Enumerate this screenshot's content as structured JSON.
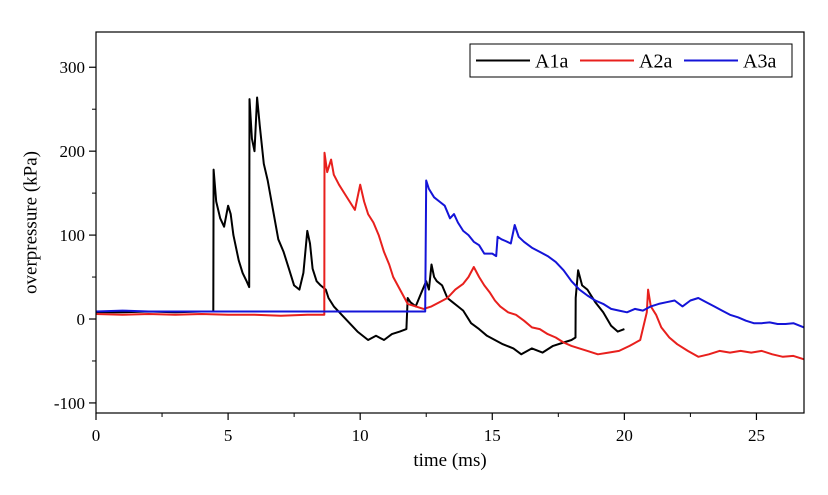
{
  "chart_data": {
    "type": "line",
    "title": "",
    "xlabel": "time (ms)",
    "ylabel": "overpressure (kPa)",
    "xlim": [
      0,
      26.8
    ],
    "ylim": [
      -112,
      342
    ],
    "x_ticks": [
      0,
      5,
      10,
      15,
      20,
      25
    ],
    "x_tick_labels": [
      "0",
      "5",
      "10",
      "15",
      "20",
      "25"
    ],
    "y_ticks": [
      -100,
      0,
      100,
      200,
      300
    ],
    "y_tick_labels": [
      "-100",
      "0",
      "100",
      "200",
      "300"
    ],
    "grid": false,
    "legend_position": "top-right",
    "series": [
      {
        "name": "A1a",
        "color": "#000000",
        "points": [
          [
            0,
            8
          ],
          [
            1.0,
            8
          ],
          [
            2.0,
            9
          ],
          [
            3.0,
            8
          ],
          [
            4.0,
            9
          ],
          [
            4.44,
            9
          ],
          [
            4.45,
            178
          ],
          [
            4.55,
            140
          ],
          [
            4.7,
            120
          ],
          [
            4.85,
            110
          ],
          [
            5.0,
            135
          ],
          [
            5.1,
            125
          ],
          [
            5.2,
            100
          ],
          [
            5.4,
            70
          ],
          [
            5.55,
            55
          ],
          [
            5.7,
            45
          ],
          [
            5.8,
            38
          ],
          [
            5.81,
            262
          ],
          [
            5.9,
            215
          ],
          [
            6.0,
            200
          ],
          [
            6.1,
            264
          ],
          [
            6.2,
            230
          ],
          [
            6.35,
            185
          ],
          [
            6.5,
            165
          ],
          [
            6.7,
            130
          ],
          [
            6.9,
            95
          ],
          [
            7.1,
            80
          ],
          [
            7.3,
            60
          ],
          [
            7.5,
            40
          ],
          [
            7.7,
            35
          ],
          [
            7.85,
            55
          ],
          [
            8.0,
            105
          ],
          [
            8.1,
            90
          ],
          [
            8.2,
            60
          ],
          [
            8.35,
            45
          ],
          [
            8.5,
            40
          ],
          [
            8.7,
            35
          ],
          [
            8.8,
            25
          ],
          [
            9.0,
            15
          ],
          [
            9.3,
            5
          ],
          [
            9.6,
            -5
          ],
          [
            9.9,
            -15
          ],
          [
            10.3,
            -25
          ],
          [
            10.6,
            -20
          ],
          [
            10.9,
            -25
          ],
          [
            11.2,
            -18
          ],
          [
            11.5,
            -15
          ],
          [
            11.75,
            -12
          ],
          [
            11.8,
            25
          ],
          [
            11.9,
            20
          ],
          [
            12.1,
            15
          ],
          [
            12.3,
            30
          ],
          [
            12.5,
            45
          ],
          [
            12.6,
            35
          ],
          [
            12.7,
            65
          ],
          [
            12.8,
            50
          ],
          [
            12.9,
            45
          ],
          [
            13.1,
            40
          ],
          [
            13.3,
            25
          ],
          [
            13.5,
            20
          ],
          [
            13.7,
            15
          ],
          [
            13.9,
            10
          ],
          [
            14.2,
            -5
          ],
          [
            14.5,
            -12
          ],
          [
            14.8,
            -20
          ],
          [
            15.1,
            -25
          ],
          [
            15.4,
            -30
          ],
          [
            15.8,
            -35
          ],
          [
            16.1,
            -42
          ],
          [
            16.5,
            -35
          ],
          [
            16.9,
            -40
          ],
          [
            17.3,
            -32
          ],
          [
            17.7,
            -28
          ],
          [
            18.0,
            -25
          ],
          [
            18.15,
            -22
          ],
          [
            18.16,
            25
          ],
          [
            18.25,
            58
          ],
          [
            18.4,
            40
          ],
          [
            18.6,
            35
          ],
          [
            18.9,
            20
          ],
          [
            19.2,
            8
          ],
          [
            19.5,
            -8
          ],
          [
            19.75,
            -15
          ],
          [
            20.0,
            -12
          ]
        ]
      },
      {
        "name": "A2a",
        "color": "#e8201d",
        "points": [
          [
            0,
            6
          ],
          [
            1.0,
            5
          ],
          [
            2.0,
            6
          ],
          [
            3.0,
            5
          ],
          [
            4.0,
            6
          ],
          [
            5.0,
            5
          ],
          [
            6.0,
            5
          ],
          [
            7.0,
            4
          ],
          [
            8.0,
            5
          ],
          [
            8.64,
            5
          ],
          [
            8.65,
            198
          ],
          [
            8.75,
            175
          ],
          [
            8.9,
            190
          ],
          [
            9.0,
            172
          ],
          [
            9.2,
            160
          ],
          [
            9.4,
            150
          ],
          [
            9.6,
            140
          ],
          [
            9.8,
            130
          ],
          [
            10.0,
            160
          ],
          [
            10.15,
            140
          ],
          [
            10.3,
            125
          ],
          [
            10.5,
            115
          ],
          [
            10.7,
            100
          ],
          [
            10.9,
            80
          ],
          [
            11.1,
            65
          ],
          [
            11.25,
            50
          ],
          [
            11.8,
            18
          ],
          [
            12.1,
            15
          ],
          [
            12.4,
            12
          ],
          [
            12.7,
            15
          ],
          [
            13.0,
            20
          ],
          [
            13.3,
            25
          ],
          [
            13.6,
            35
          ],
          [
            13.9,
            42
          ],
          [
            14.1,
            50
          ],
          [
            14.3,
            62
          ],
          [
            14.5,
            50
          ],
          [
            14.7,
            40
          ],
          [
            14.9,
            32
          ],
          [
            15.1,
            22
          ],
          [
            15.3,
            15
          ],
          [
            15.6,
            8
          ],
          [
            15.9,
            5
          ],
          [
            16.2,
            -2
          ],
          [
            16.5,
            -10
          ],
          [
            16.8,
            -12
          ],
          [
            17.1,
            -18
          ],
          [
            17.4,
            -22
          ],
          [
            17.7,
            -28
          ],
          [
            18.0,
            -32
          ],
          [
            18.3,
            -35
          ],
          [
            18.6,
            -38
          ],
          [
            19.0,
            -42
          ],
          [
            19.4,
            -40
          ],
          [
            19.8,
            -38
          ],
          [
            20.2,
            -32
          ],
          [
            20.6,
            -25
          ],
          [
            20.85,
            8
          ],
          [
            20.9,
            35
          ],
          [
            21.0,
            15
          ],
          [
            21.2,
            5
          ],
          [
            21.4,
            -10
          ],
          [
            21.7,
            -22
          ],
          [
            22.0,
            -30
          ],
          [
            22.4,
            -38
          ],
          [
            22.8,
            -45
          ],
          [
            23.2,
            -42
          ],
          [
            23.6,
            -38
          ],
          [
            24.0,
            -40
          ],
          [
            24.4,
            -38
          ],
          [
            24.8,
            -40
          ],
          [
            25.2,
            -38
          ],
          [
            25.6,
            -42
          ],
          [
            26.0,
            -45
          ],
          [
            26.4,
            -44
          ],
          [
            26.8,
            -48
          ]
        ]
      },
      {
        "name": "A3a",
        "color": "#1414d8",
        "points": [
          [
            0,
            9
          ],
          [
            1.0,
            10
          ],
          [
            2.0,
            9
          ],
          [
            3.0,
            9
          ],
          [
            4.0,
            9
          ],
          [
            5.0,
            9
          ],
          [
            6.0,
            9
          ],
          [
            7.0,
            9
          ],
          [
            8.0,
            9
          ],
          [
            9.0,
            9
          ],
          [
            10.0,
            9
          ],
          [
            11.0,
            9
          ],
          [
            12.0,
            9
          ],
          [
            12.46,
            9
          ],
          [
            12.5,
            165
          ],
          [
            12.6,
            155
          ],
          [
            12.8,
            145
          ],
          [
            13.0,
            140
          ],
          [
            13.2,
            135
          ],
          [
            13.4,
            120
          ],
          [
            13.55,
            125
          ],
          [
            13.7,
            115
          ],
          [
            13.9,
            105
          ],
          [
            14.1,
            100
          ],
          [
            14.3,
            92
          ],
          [
            14.5,
            88
          ],
          [
            14.7,
            78
          ],
          [
            15.0,
            78
          ],
          [
            15.15,
            75
          ],
          [
            15.2,
            98
          ],
          [
            15.35,
            95
          ],
          [
            15.5,
            93
          ],
          [
            15.7,
            90
          ],
          [
            15.85,
            112
          ],
          [
            16.0,
            98
          ],
          [
            16.2,
            92
          ],
          [
            16.5,
            85
          ],
          [
            16.8,
            80
          ],
          [
            17.1,
            75
          ],
          [
            17.4,
            68
          ],
          [
            17.7,
            58
          ],
          [
            18.0,
            45
          ],
          [
            18.3,
            35
          ],
          [
            18.6,
            28
          ],
          [
            18.9,
            22
          ],
          [
            19.2,
            18
          ],
          [
            19.5,
            12
          ],
          [
            19.8,
            10
          ],
          [
            20.1,
            8
          ],
          [
            20.4,
            12
          ],
          [
            20.7,
            10
          ],
          [
            21.0,
            15
          ],
          [
            21.3,
            18
          ],
          [
            21.6,
            20
          ],
          [
            21.9,
            22
          ],
          [
            22.2,
            15
          ],
          [
            22.5,
            22
          ],
          [
            22.8,
            25
          ],
          [
            23.1,
            20
          ],
          [
            23.4,
            15
          ],
          [
            23.7,
            10
          ],
          [
            24.0,
            5
          ],
          [
            24.3,
            2
          ],
          [
            24.6,
            -2
          ],
          [
            24.9,
            -5
          ],
          [
            25.2,
            -5
          ],
          [
            25.5,
            -4
          ],
          [
            25.8,
            -6
          ],
          [
            26.1,
            -6
          ],
          [
            26.4,
            -5
          ],
          [
            26.8,
            -10
          ]
        ]
      }
    ]
  }
}
